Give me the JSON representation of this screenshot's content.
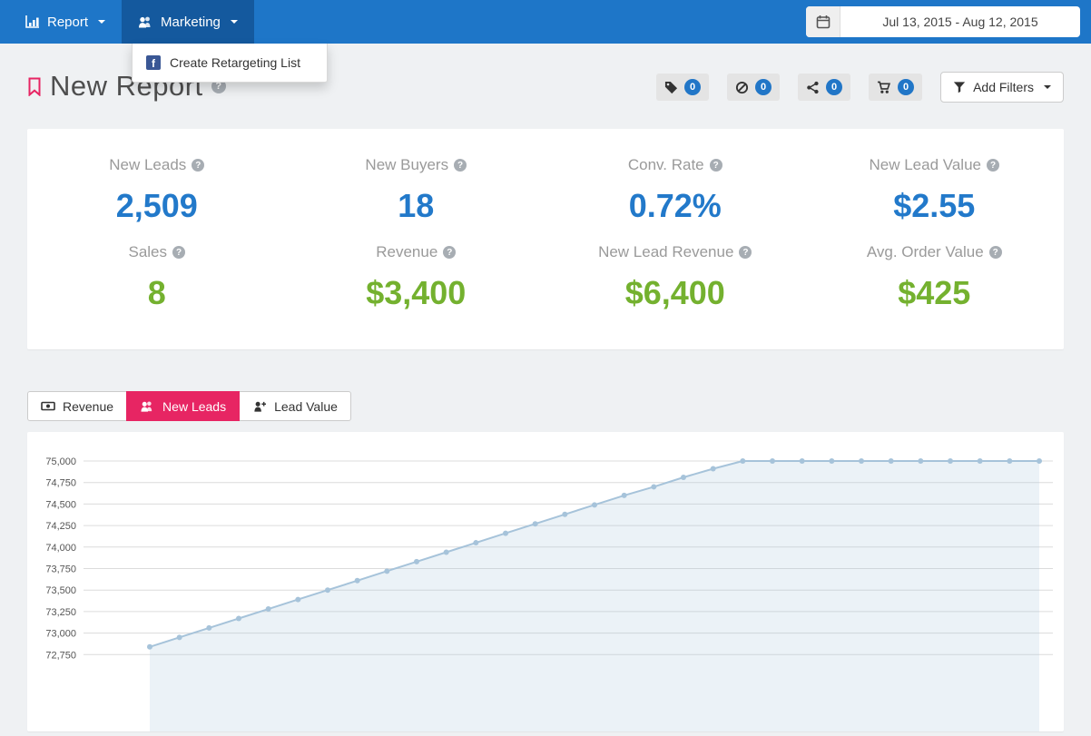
{
  "navbar": {
    "items": [
      {
        "label": "Report"
      },
      {
        "label": "Marketing"
      }
    ],
    "date_range": "Jul 13, 2015 - Aug 12, 2015"
  },
  "marketing_menu": {
    "items": [
      {
        "label": "Create Retargeting List"
      }
    ]
  },
  "page": {
    "title": "New Report"
  },
  "filter_bar": {
    "badges": [
      {
        "icon": "tag-icon",
        "count": "0"
      },
      {
        "icon": "circle-slash-icon",
        "count": "0"
      },
      {
        "icon": "share-icon",
        "count": "0"
      },
      {
        "icon": "cart-icon",
        "count": "0"
      }
    ],
    "add_filters_label": "Add Filters"
  },
  "metrics": {
    "row1": [
      {
        "label": "New Leads",
        "value": "2,509"
      },
      {
        "label": "New Buyers",
        "value": "18"
      },
      {
        "label": "Conv. Rate",
        "value": "0.72%"
      },
      {
        "label": "New Lead Value",
        "value": "$2.55"
      }
    ],
    "row2": [
      {
        "label": "Sales",
        "value": "8"
      },
      {
        "label": "Revenue",
        "value": "$3,400"
      },
      {
        "label": "New Lead Revenue",
        "value": "$6,400"
      },
      {
        "label": "Avg. Order Value",
        "value": "$425"
      }
    ]
  },
  "tabs": [
    {
      "label": "Revenue",
      "active": false
    },
    {
      "label": "New Leads",
      "active": true
    },
    {
      "label": "Lead Value",
      "active": false
    }
  ],
  "icons": {
    "help_glyph": "?",
    "facebook_glyph": "f"
  },
  "colors": {
    "navbar": "#1e76c8",
    "navbar_active": "#14599e",
    "accent_blue": "#2279ca",
    "accent_green": "#74b12f",
    "accent_pink": "#e72563",
    "badge_blue": "#2176c7",
    "chart_line": "#a6c3da",
    "chart_fill": "rgba(166,195,218,0.22)",
    "grid_line": "#dcdcdc"
  },
  "chart_data": {
    "type": "area",
    "title": "",
    "xlabel": "",
    "ylabel": "",
    "legend": "none",
    "grid": true,
    "x_tick_labels_visible": false,
    "ylim": [
      72750,
      75000
    ],
    "yticks": [
      75000,
      74750,
      74500,
      74250,
      74000,
      73750,
      73500,
      73250,
      73000,
      72750
    ],
    "series": [
      {
        "name": "New Leads",
        "values": [
          72840,
          72950,
          73060,
          73170,
          73280,
          73390,
          73500,
          73610,
          73720,
          73830,
          73940,
          74050,
          74160,
          74270,
          74380,
          74490,
          74600,
          74700,
          74810,
          74910,
          75000,
          75000,
          75000,
          75000,
          75000,
          75000,
          75000,
          75000,
          75000,
          75000,
          75000
        ]
      }
    ]
  }
}
